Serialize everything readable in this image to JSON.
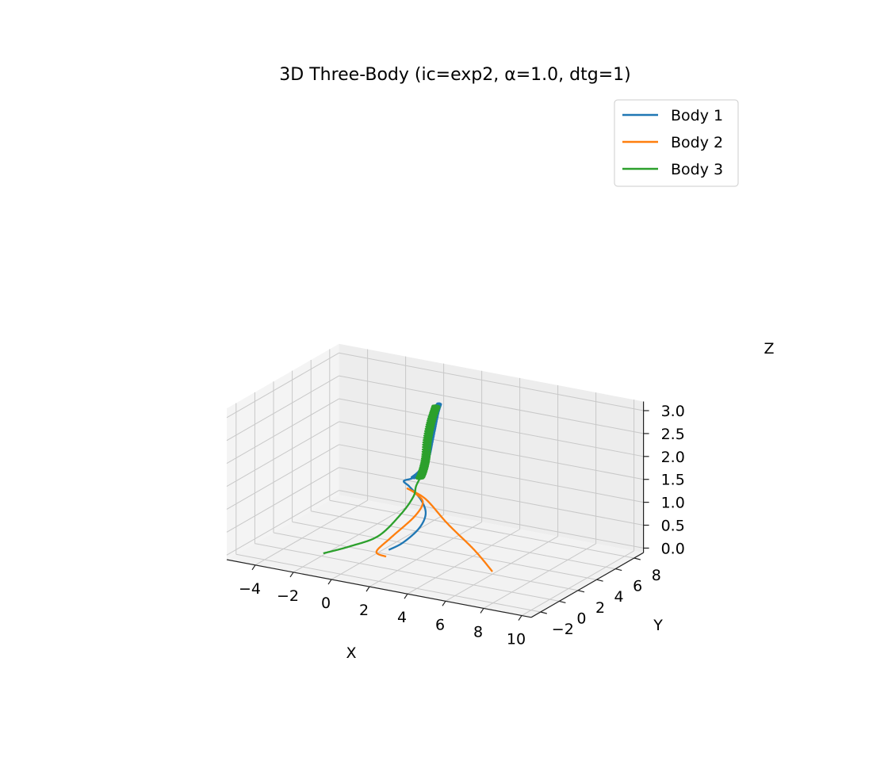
{
  "chart_data": {
    "type": "line3d",
    "title": "3D Three-Body (ic=exp2, α=1.0, dtg=1)",
    "xlabel": "X",
    "ylabel": "Y",
    "zlabel": "Z",
    "xticks": [
      "−4",
      "−2",
      "0",
      "2",
      "4",
      "6",
      "8",
      "10"
    ],
    "yticks": [
      "−2",
      "0",
      "2",
      "4",
      "6",
      "8"
    ],
    "zticks": [
      "0.0",
      "0.5",
      "1.0",
      "1.5",
      "2.0",
      "2.5",
      "3.0"
    ],
    "xlim": [
      -5.5,
      10.5
    ],
    "ylim": [
      -3,
      9
    ],
    "zlim": [
      -0.1,
      3.2
    ],
    "grid": true,
    "legend_position": "upper-right",
    "series": [
      {
        "name": "Body 1",
        "color": "#1f77b4",
        "points": [
          [
            0.8,
            1.5,
            0.08
          ],
          [
            1.4,
            1.8,
            0.25
          ],
          [
            2.0,
            2.3,
            0.55
          ],
          [
            2.2,
            2.6,
            0.85
          ],
          [
            2.0,
            2.5,
            1.15
          ],
          [
            1.5,
            2.3,
            1.42
          ],
          [
            1.2,
            2.3,
            1.52
          ],
          [
            1.6,
            2.5,
            1.6
          ],
          [
            2.0,
            2.7,
            1.8
          ],
          [
            2.2,
            2.8,
            2.1
          ],
          [
            2.3,
            2.9,
            2.4
          ],
          [
            2.4,
            3.0,
            2.7
          ],
          [
            2.5,
            3.1,
            3.0
          ],
          [
            2.6,
            3.2,
            3.2
          ]
        ]
      },
      {
        "name": "Body 2",
        "color": "#ff7f0e",
        "points": [
          [
            0.9,
            1.0,
            0.0
          ],
          [
            0.5,
            0.8,
            0.1
          ],
          [
            0.9,
            1.5,
            0.35
          ],
          [
            1.8,
            2.2,
            0.8
          ],
          [
            2.1,
            2.5,
            1.1
          ],
          [
            1.8,
            2.3,
            1.3
          ],
          [
            1.5,
            2.1,
            1.4
          ],
          [
            2.3,
            2.4,
            1.2
          ],
          [
            3.6,
            2.1,
            0.8
          ],
          [
            5.2,
            1.7,
            0.4
          ],
          [
            6.3,
            1.4,
            0.05
          ]
        ]
      },
      {
        "name": "Body 3",
        "color": "#2ca02c",
        "points": [
          [
            -1.8,
            -0.2,
            0.0
          ],
          [
            -0.6,
            0.2,
            0.2
          ],
          [
            0.6,
            0.8,
            0.45
          ],
          [
            1.4,
            1.6,
            0.9
          ],
          [
            1.8,
            2.1,
            1.25
          ],
          [
            1.8,
            2.4,
            1.45
          ],
          [
            2.0,
            2.6,
            1.7
          ],
          [
            2.1,
            2.8,
            2.0
          ],
          [
            2.1,
            3.0,
            2.4
          ],
          [
            2.2,
            3.2,
            2.8
          ],
          [
            2.3,
            3.5,
            3.1
          ]
        ]
      }
    ]
  }
}
